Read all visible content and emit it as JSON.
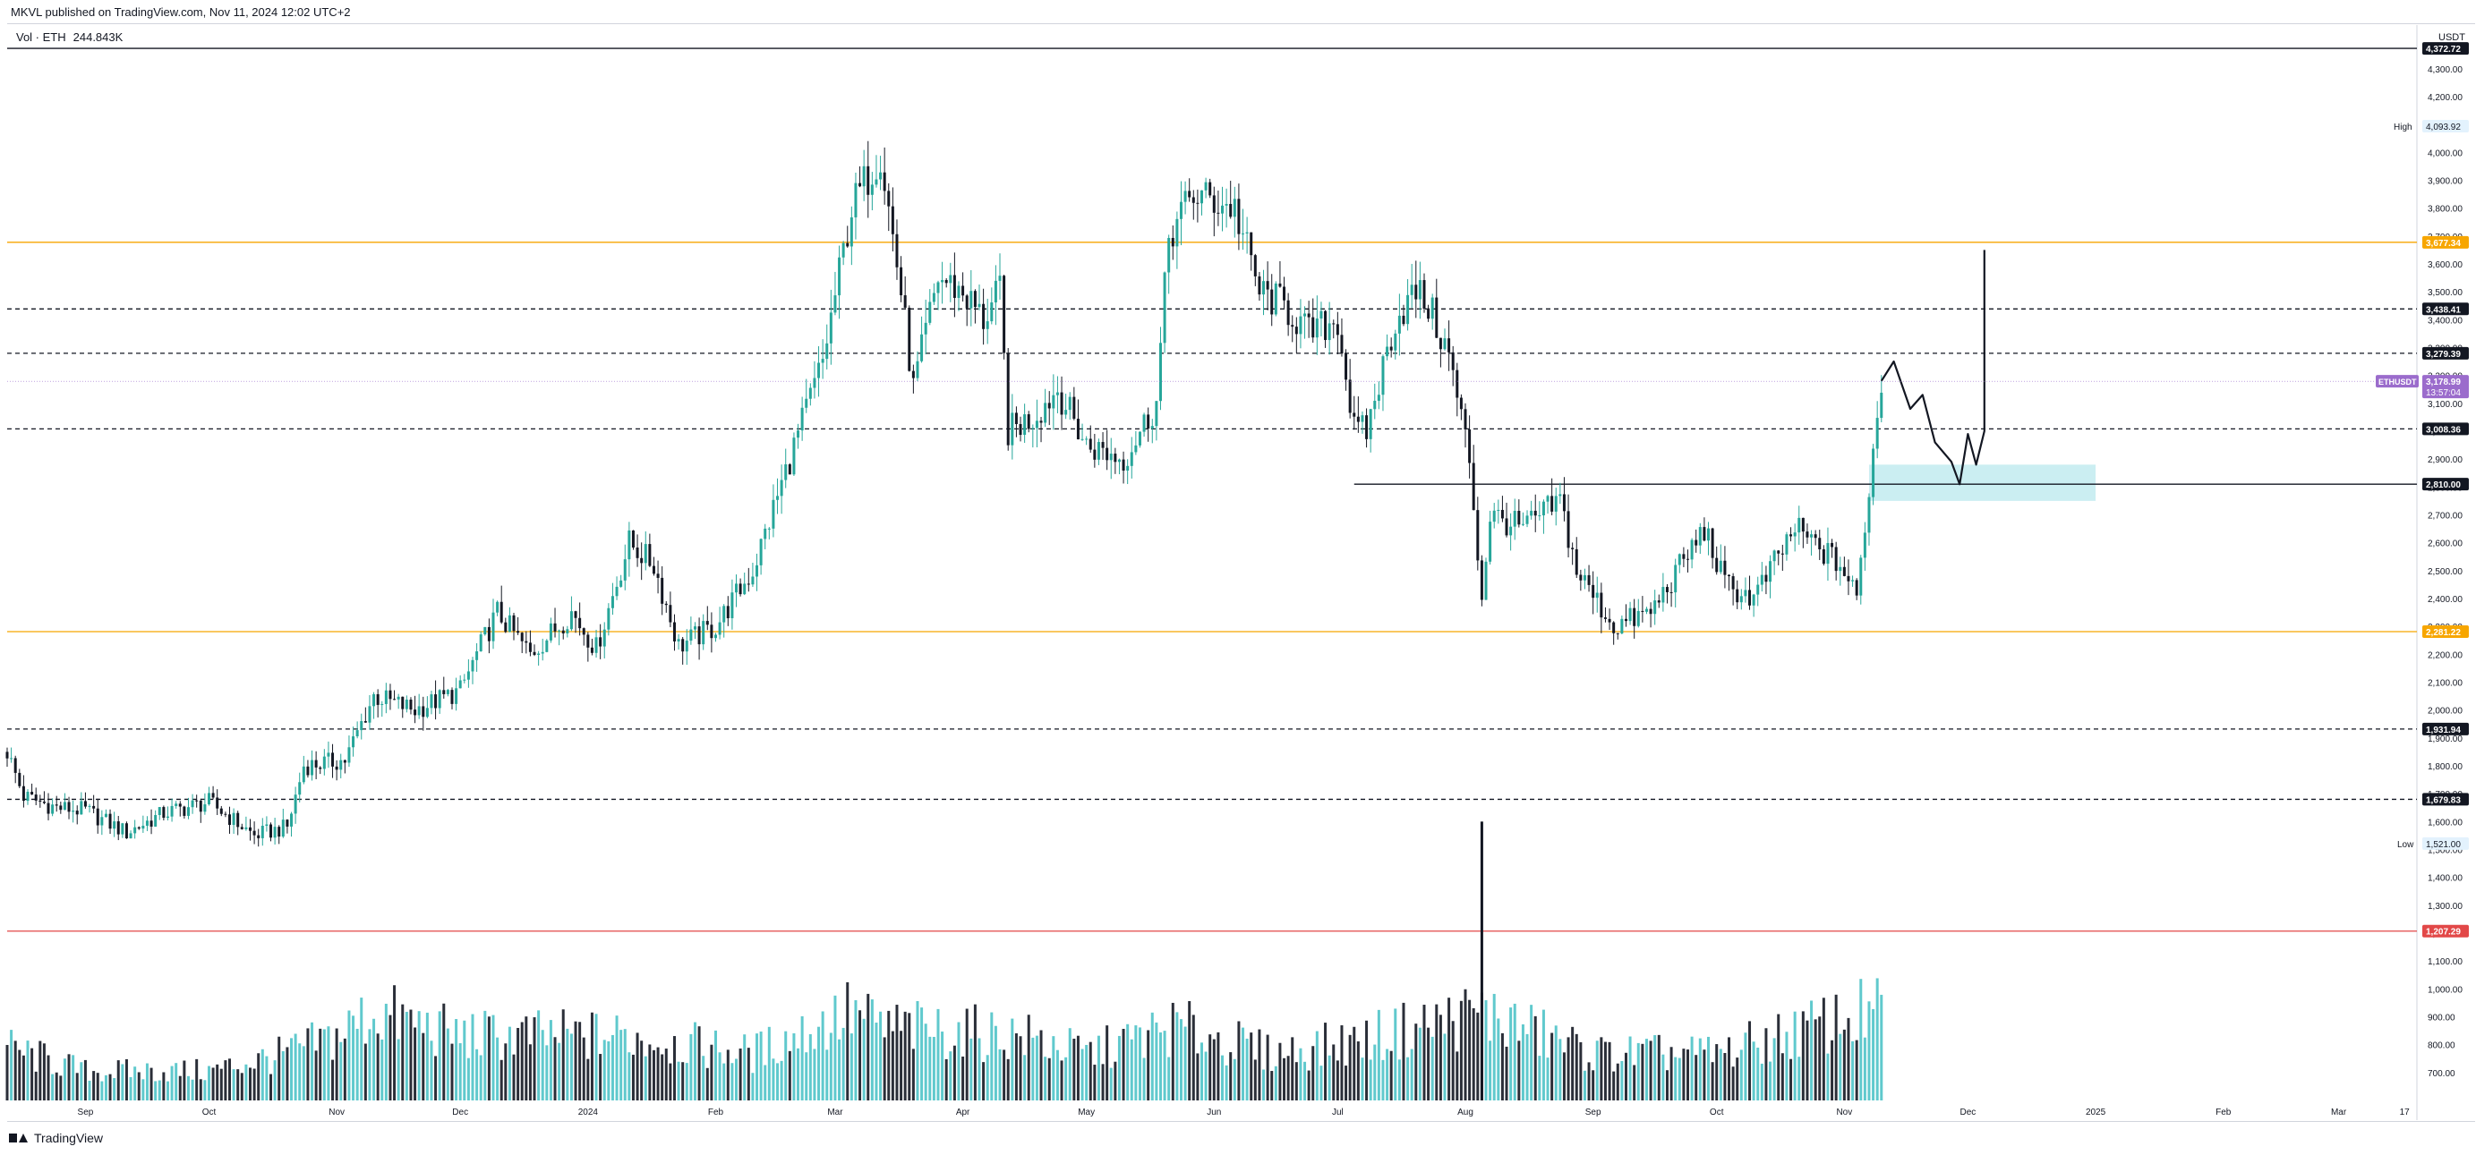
{
  "header": {
    "published": "MKVL published on TradingView.com, Nov 11, 2024 12:02 UTC+2"
  },
  "legend": {
    "volume_label": "Vol · ETH",
    "volume_value": "244.843K"
  },
  "footer": {
    "brand": "TradingView"
  },
  "colors": {
    "up": "#26a69a",
    "up_volume": "#4fc3c8",
    "down": "#131722",
    "orange": "#f7a600",
    "red_line": "#e24848",
    "zone": "#a8e3ea",
    "symbol_tag": "#9b6ccc"
  },
  "chart_data": {
    "type": "candlestick",
    "symbol": "ETHUSDT",
    "currency": "USDT",
    "y_unit": "USDT",
    "ylim": [
      600,
      4450
    ],
    "y_ticks": [
      700,
      800,
      900,
      1000,
      1100,
      1200,
      1300,
      1400,
      1500,
      1600,
      1700,
      1800,
      1900,
      2000,
      2100,
      2200,
      2300,
      2400,
      2500,
      2600,
      2700,
      2800,
      2900,
      3000,
      3100,
      3200,
      3300,
      3400,
      3500,
      3600,
      3700,
      3800,
      3900,
      4000,
      4100,
      4200,
      4300
    ],
    "x_range": [
      "2023-08-13",
      "2025-03-20"
    ],
    "x_ticks": [
      {
        "label": "Sep",
        "date": "2023-09-01"
      },
      {
        "label": "Oct",
        "date": "2023-10-01"
      },
      {
        "label": "Nov",
        "date": "2023-11-01"
      },
      {
        "label": "Dec",
        "date": "2023-12-01"
      },
      {
        "label": "2024",
        "date": "2024-01-01"
      },
      {
        "label": "Feb",
        "date": "2024-02-01"
      },
      {
        "label": "Mar",
        "date": "2024-03-01"
      },
      {
        "label": "Apr",
        "date": "2024-04-01"
      },
      {
        "label": "May",
        "date": "2024-05-01"
      },
      {
        "label": "Jun",
        "date": "2024-06-01"
      },
      {
        "label": "Jul",
        "date": "2024-07-01"
      },
      {
        "label": "Aug",
        "date": "2024-08-01"
      },
      {
        "label": "Sep",
        "date": "2024-09-01"
      },
      {
        "label": "Oct",
        "date": "2024-10-01"
      },
      {
        "label": "Nov",
        "date": "2024-11-01"
      },
      {
        "label": "Dec",
        "date": "2024-12-01"
      },
      {
        "label": "2025",
        "date": "2025-01-01"
      },
      {
        "label": "Feb",
        "date": "2025-02-01"
      },
      {
        "label": "Mar",
        "date": "2025-03-01"
      },
      {
        "label": "17",
        "date": "2025-03-17"
      }
    ],
    "price_path": [
      [
        "2023-08-13",
        1850
      ],
      [
        "2023-08-17",
        1690
      ],
      [
        "2023-08-25",
        1650
      ],
      [
        "2023-09-01",
        1640
      ],
      [
        "2023-09-11",
        1560
      ],
      [
        "2023-09-20",
        1630
      ],
      [
        "2023-10-01",
        1670
      ],
      [
        "2023-10-12",
        1550
      ],
      [
        "2023-10-20",
        1580
      ],
      [
        "2023-10-24",
        1800
      ],
      [
        "2023-11-03",
        1820
      ],
      [
        "2023-11-10",
        2050
      ],
      [
        "2023-11-20",
        2000
      ],
      [
        "2023-12-01",
        2070
      ],
      [
        "2023-12-05",
        2200
      ],
      [
        "2023-12-10",
        2350
      ],
      [
        "2023-12-18",
        2200
      ],
      [
        "2023-12-28",
        2350
      ],
      [
        "2024-01-03",
        2220
      ],
      [
        "2024-01-11",
        2600
      ],
      [
        "2024-01-17",
        2520
      ],
      [
        "2024-01-23",
        2230
      ],
      [
        "2024-02-01",
        2300
      ],
      [
        "2024-02-10",
        2500
      ],
      [
        "2024-02-19",
        2900
      ],
      [
        "2024-02-27",
        3250
      ],
      [
        "2024-03-05",
        3800
      ],
      [
        "2024-03-12",
        4000
      ],
      [
        "2024-03-17",
        3500
      ],
      [
        "2024-03-20",
        3150
      ],
      [
        "2024-03-26",
        3550
      ],
      [
        "2024-04-01",
        3500
      ],
      [
        "2024-04-06",
        3400
      ],
      [
        "2024-04-10",
        3500
      ],
      [
        "2024-04-12",
        3000
      ],
      [
        "2024-04-18",
        3050
      ],
      [
        "2024-04-24",
        3150
      ],
      [
        "2024-05-01",
        2950
      ],
      [
        "2024-05-10",
        2900
      ],
      [
        "2024-05-18",
        3100
      ],
      [
        "2024-05-21",
        3700
      ],
      [
        "2024-05-27",
        3850
      ],
      [
        "2024-06-06",
        3800
      ],
      [
        "2024-06-12",
        3500
      ],
      [
        "2024-06-18",
        3450
      ],
      [
        "2024-06-24",
        3350
      ],
      [
        "2024-07-01",
        3400
      ],
      [
        "2024-07-05",
        3000
      ],
      [
        "2024-07-08",
        3000
      ],
      [
        "2024-07-15",
        3400
      ],
      [
        "2024-07-20",
        3500
      ],
      [
        "2024-07-23",
        3450
      ],
      [
        "2024-07-28",
        3270
      ],
      [
        "2024-08-02",
        2900
      ],
      [
        "2024-08-05",
        2400
      ],
      [
        "2024-08-07",
        2700
      ],
      [
        "2024-08-15",
        2650
      ],
      [
        "2024-08-24",
        2750
      ],
      [
        "2024-08-28",
        2500
      ],
      [
        "2024-09-06",
        2300
      ],
      [
        "2024-09-15",
        2350
      ],
      [
        "2024-09-28",
        2650
      ],
      [
        "2024-10-03",
        2450
      ],
      [
        "2024-10-10",
        2400
      ],
      [
        "2024-10-20",
        2650
      ],
      [
        "2024-10-31",
        2520
      ],
      [
        "2024-11-04",
        2400
      ],
      [
        "2024-11-07",
        2800
      ],
      [
        "2024-11-10",
        3180
      ]
    ],
    "projection_path": [
      [
        "2024-11-10",
        3180
      ],
      [
        "2024-11-13",
        3250
      ],
      [
        "2024-11-17",
        3080
      ],
      [
        "2024-11-20",
        3130
      ],
      [
        "2024-11-23",
        2960
      ],
      [
        "2024-11-27",
        2890
      ],
      [
        "2024-11-29",
        2810
      ],
      [
        "2024-12-01",
        2990
      ],
      [
        "2024-12-03",
        2880
      ],
      [
        "2024-12-05",
        3000
      ],
      [
        "2024-12-05",
        3650
      ]
    ],
    "volume_range": [
      600,
      1650
    ],
    "volume_path": [
      [
        "2023-08-13",
        780
      ],
      [
        "2023-09-01",
        700
      ],
      [
        "2023-10-01",
        700
      ],
      [
        "2023-10-20",
        760
      ],
      [
        "2023-11-01",
        820
      ],
      [
        "2023-11-10",
        900
      ],
      [
        "2023-12-01",
        820
      ],
      [
        "2024-01-10",
        820
      ],
      [
        "2024-02-10",
        760
      ],
      [
        "2024-03-05",
        900
      ],
      [
        "2024-03-12",
        850
      ],
      [
        "2024-04-15",
        820
      ],
      [
        "2024-05-01",
        760
      ],
      [
        "2024-05-23",
        850
      ],
      [
        "2024-06-15",
        760
      ],
      [
        "2024-07-05",
        800
      ],
      [
        "2024-08-05",
        900
      ],
      [
        "2024-09-01",
        760
      ],
      [
        "2024-10-01",
        760
      ],
      [
        "2024-11-07",
        900
      ]
    ],
    "volume_spike": {
      "date": "2024-08-05",
      "value": 1600
    },
    "levels": [
      {
        "price": 4372.72,
        "label": "4,372.72",
        "style": "solid",
        "color": "#131722"
      },
      {
        "price": 3677.34,
        "label": "3,677.34",
        "style": "solid",
        "color": "#f7a600"
      },
      {
        "price": 3438.41,
        "label": "3,438.41",
        "style": "dashed",
        "color": "#131722"
      },
      {
        "price": 3279.39,
        "label": "3,279.39",
        "style": "dashed",
        "color": "#131722"
      },
      {
        "price": 3008.36,
        "label": "3,008.36",
        "style": "dashed",
        "color": "#131722"
      },
      {
        "price": 2810.0,
        "label": "2,810.00",
        "style": "solid",
        "color": "#131722",
        "from": "2024-07-05"
      },
      {
        "price": 2281.22,
        "label": "2,281.22",
        "style": "solid",
        "color": "#f7a600"
      },
      {
        "price": 1931.94,
        "label": "1,931.94",
        "style": "dashed",
        "color": "#131722"
      },
      {
        "price": 1679.83,
        "label": "1,679.83",
        "style": "dashed",
        "color": "#131722"
      },
      {
        "price": 1207.29,
        "label": "1,207.29",
        "style": "solid",
        "color": "#e24848"
      }
    ],
    "zone": {
      "from": "2024-11-07",
      "to": "2025-01-01",
      "price_low": 2750,
      "price_high": 2880
    },
    "high_marker": {
      "label": "High",
      "value": "4,093.92",
      "price": 4093.92
    },
    "low_marker": {
      "label": "Low",
      "value": "1,521.00",
      "price": 1521.0
    },
    "current": {
      "symbol": "ETHUSDT",
      "price": "3,178.99",
      "countdown": "13:57:04",
      "value": 3178.99
    }
  }
}
